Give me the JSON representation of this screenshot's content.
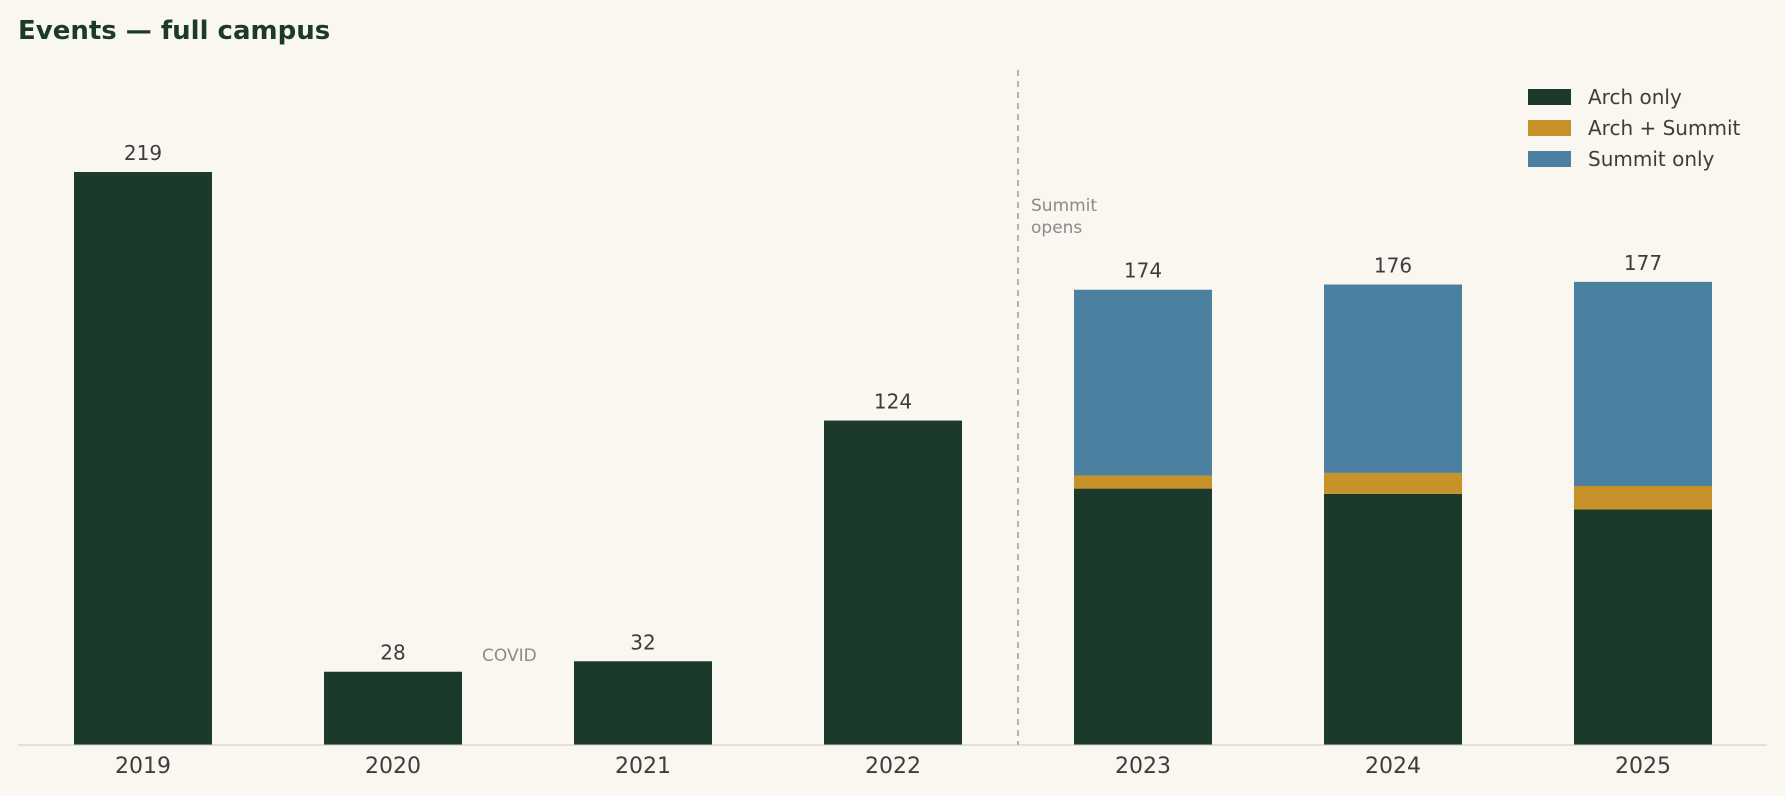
{
  "chart_data": {
    "type": "bar",
    "stacked": true,
    "title": "Events — full campus",
    "xlabel": "",
    "ylabel": "",
    "categories": [
      "2019",
      "2020",
      "2021",
      "2022",
      "2023",
      "2024",
      "2025"
    ],
    "totals": [
      219,
      28,
      32,
      124,
      174,
      176,
      177
    ],
    "series": [
      {
        "name": "Arch only",
        "color": "#1b3a2b",
        "values": [
          219,
          28,
          32,
          124,
          98,
          96,
          90
        ]
      },
      {
        "name": "Arch + Summit",
        "color": "#c8922b",
        "values": [
          0,
          0,
          0,
          0,
          5,
          8,
          9
        ]
      },
      {
        "name": "Summit only",
        "color": "#4b80a1",
        "values": [
          0,
          0,
          0,
          0,
          71,
          72,
          78
        ]
      }
    ],
    "ylim": [
      0,
      260
    ],
    "grid": false,
    "legend_position": "top-right",
    "annotations": [
      {
        "text": "COVID",
        "near_category": "2020"
      },
      {
        "text_lines": [
          "Summit",
          "opens"
        ],
        "between": [
          "2022",
          "2023"
        ],
        "style": "dashed-vertical-line"
      }
    ]
  }
}
